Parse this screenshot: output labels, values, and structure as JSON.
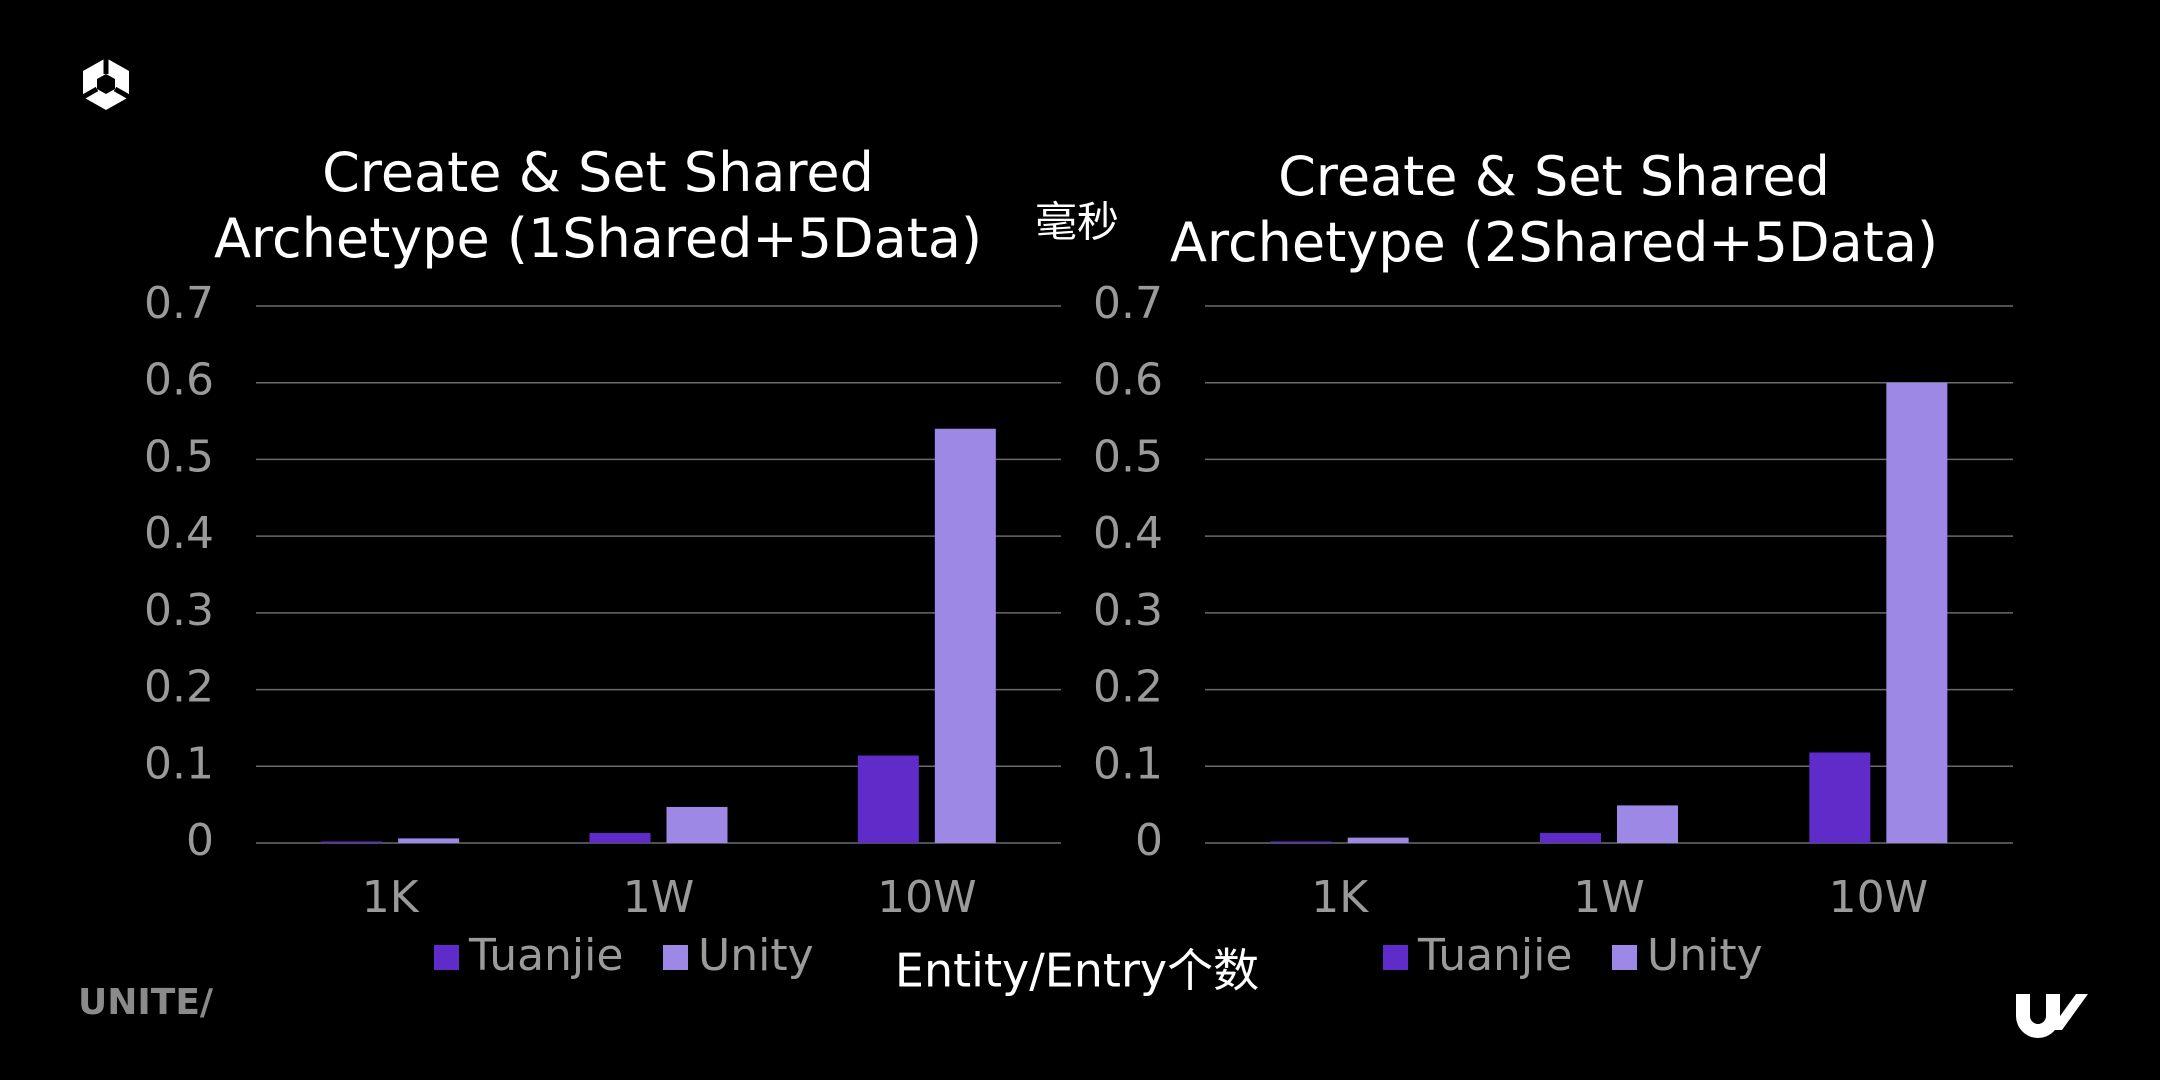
{
  "chart_data": [
    {
      "type": "bar",
      "title": "Create & Set Shared Archetype (1Shared+5Data)",
      "categories": [
        "1K",
        "1W",
        "10W"
      ],
      "series": [
        {
          "name": "Tuanjie",
          "color": "#5f2bc9",
          "values": [
            0.002,
            0.013,
            0.114
          ]
        },
        {
          "name": "Unity",
          "color": "#9d88e6",
          "values": [
            0.006,
            0.047,
            0.54
          ]
        }
      ],
      "ylim": [
        0,
        0.7
      ],
      "yticks": [
        0,
        0.1,
        0.2,
        0.3,
        0.4,
        0.5,
        0.6,
        0.7
      ],
      "grid": true,
      "legend": "bottom"
    },
    {
      "type": "bar",
      "title": "Create & Set Shared Archetype (2Shared+5Data)",
      "categories": [
        "1K",
        "1W",
        "10W"
      ],
      "series": [
        {
          "name": "Tuanjie",
          "color": "#5f2bc9",
          "values": [
            0.002,
            0.013,
            0.118
          ]
        },
        {
          "name": "Unity",
          "color": "#9d88e6",
          "values": [
            0.007,
            0.049,
            0.6
          ]
        }
      ],
      "ylim": [
        0,
        0.7
      ],
      "yticks": [
        0,
        0.1,
        0.2,
        0.3,
        0.4,
        0.5,
        0.6,
        0.7
      ],
      "grid": true,
      "legend": "bottom"
    }
  ],
  "shared_axes": {
    "y_label": "毫秒",
    "x_label": "Entity/Entry个数"
  },
  "footer": {
    "brand": "UNITE/"
  }
}
